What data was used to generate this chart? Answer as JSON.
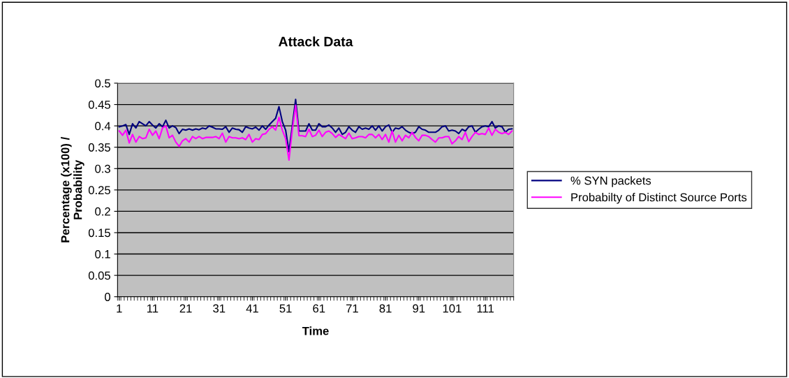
{
  "chart_data": {
    "type": "line",
    "title": "Attack Data",
    "xlabel": "Time",
    "ylabel": "Percentage (x100) /\nProbability",
    "categories": [
      "1",
      null,
      null,
      null,
      null,
      null,
      null,
      null,
      null,
      null,
      "11",
      null,
      null,
      null,
      null,
      null,
      null,
      null,
      null,
      null,
      "21",
      null,
      null,
      null,
      null,
      null,
      null,
      null,
      null,
      null,
      "31",
      null,
      null,
      null,
      null,
      null,
      null,
      null,
      null,
      null,
      "41",
      null,
      null,
      null,
      null,
      null,
      null,
      null,
      null,
      null,
      "51",
      null,
      null,
      null,
      null,
      null,
      null,
      null,
      null,
      null,
      "61",
      null,
      null,
      null,
      null,
      null,
      null,
      null,
      null,
      null,
      "71",
      null,
      null,
      null,
      null,
      null,
      null,
      null,
      null,
      null,
      "81",
      null,
      null,
      null,
      null,
      null,
      null,
      null,
      null,
      null,
      "91",
      null,
      null,
      null,
      null,
      null,
      null,
      null,
      null,
      null,
      "101",
      null,
      null,
      null,
      null,
      null,
      null,
      null,
      null,
      null,
      "111",
      null,
      null,
      null,
      null,
      null,
      null,
      null,
      null
    ],
    "series": [
      {
        "name": "% SYN packets",
        "color": "#000080",
        "values": [
          0.398,
          0.4,
          0.403,
          0.38,
          0.405,
          0.395,
          0.41,
          0.405,
          0.4,
          0.41,
          0.402,
          0.395,
          0.405,
          0.398,
          0.413,
          0.395,
          0.4,
          0.396,
          0.382,
          0.392,
          0.39,
          0.393,
          0.39,
          0.393,
          0.391,
          0.395,
          0.393,
          0.4,
          0.397,
          0.393,
          0.393,
          0.392,
          0.398,
          0.385,
          0.395,
          0.392,
          0.391,
          0.385,
          0.398,
          0.395,
          0.393,
          0.397,
          0.39,
          0.4,
          0.392,
          0.402,
          0.41,
          0.418,
          0.445,
          0.41,
          0.39,
          0.34,
          0.4,
          0.462,
          0.388,
          0.388,
          0.388,
          0.405,
          0.39,
          0.39,
          0.405,
          0.398,
          0.398,
          0.402,
          0.395,
          0.385,
          0.395,
          0.38,
          0.385,
          0.398,
          0.39,
          0.385,
          0.398,
          0.392,
          0.395,
          0.392,
          0.4,
          0.39,
          0.4,
          0.388,
          0.398,
          0.402,
          0.385,
          0.395,
          0.393,
          0.398,
          0.39,
          0.385,
          0.382,
          0.385,
          0.398,
          0.392,
          0.39,
          0.385,
          0.385,
          0.385,
          0.39,
          0.398,
          0.4,
          0.388,
          0.39,
          0.388,
          0.382,
          0.392,
          0.388,
          0.398,
          0.4,
          0.385,
          0.392,
          0.398,
          0.4,
          0.398,
          0.41,
          0.395,
          0.4,
          0.398,
          0.385,
          0.392,
          0.393
        ]
      },
      {
        "name": "Probabilty of Distinct Source Ports",
        "color": "#ff00ff",
        "values": [
          0.388,
          0.378,
          0.39,
          0.36,
          0.38,
          0.362,
          0.375,
          0.37,
          0.372,
          0.392,
          0.378,
          0.388,
          0.37,
          0.395,
          0.4,
          0.372,
          0.378,
          0.362,
          0.352,
          0.365,
          0.37,
          0.362,
          0.375,
          0.37,
          0.375,
          0.37,
          0.373,
          0.373,
          0.373,
          0.375,
          0.37,
          0.383,
          0.362,
          0.375,
          0.372,
          0.372,
          0.37,
          0.372,
          0.368,
          0.38,
          0.362,
          0.37,
          0.368,
          0.38,
          0.382,
          0.392,
          0.398,
          0.39,
          0.42,
          0.39,
          0.37,
          0.32,
          0.39,
          0.448,
          0.377,
          0.377,
          0.375,
          0.392,
          0.375,
          0.378,
          0.39,
          0.375,
          0.385,
          0.388,
          0.382,
          0.373,
          0.38,
          0.375,
          0.37,
          0.383,
          0.37,
          0.372,
          0.375,
          0.375,
          0.372,
          0.38,
          0.38,
          0.372,
          0.38,
          0.368,
          0.38,
          0.362,
          0.388,
          0.362,
          0.378,
          0.365,
          0.378,
          0.372,
          0.385,
          0.373,
          0.365,
          0.378,
          0.378,
          0.375,
          0.368,
          0.362,
          0.372,
          0.372,
          0.375,
          0.375,
          0.358,
          0.365,
          0.375,
          0.368,
          0.385,
          0.363,
          0.375,
          0.385,
          0.38,
          0.382,
          0.38,
          0.395,
          0.378,
          0.392,
          0.385,
          0.382,
          0.385,
          0.38,
          0.388
        ]
      }
    ],
    "ylim": [
      0,
      0.5
    ],
    "yticks": [
      0,
      0.05,
      0.1,
      0.15,
      0.2,
      0.25,
      0.3,
      0.35,
      0.4,
      0.45,
      0.5
    ],
    "grid": "y",
    "legend": "right",
    "marker": "none",
    "line_style": "solid"
  }
}
